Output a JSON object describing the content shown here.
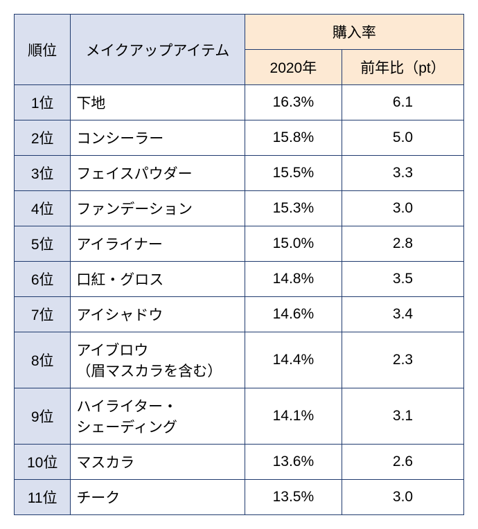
{
  "table": {
    "columns": {
      "rank": "順位",
      "item": "メイクアップアイテム",
      "rate_group": "購入率",
      "year": "2020年",
      "yoy": "前年比（pt）"
    },
    "rows": [
      {
        "rank": "1位",
        "item": "下地",
        "rate": "16.3%",
        "yoy": "6.1"
      },
      {
        "rank": "2位",
        "item": "コンシーラー",
        "rate": "15.8%",
        "yoy": "5.0"
      },
      {
        "rank": "3位",
        "item": "フェイスパウダー",
        "rate": "15.5%",
        "yoy": "3.3"
      },
      {
        "rank": "4位",
        "item": "ファンデーション",
        "rate": "15.3%",
        "yoy": "3.0"
      },
      {
        "rank": "5位",
        "item": "アイライナー",
        "rate": "15.0%",
        "yoy": "2.8"
      },
      {
        "rank": "6位",
        "item": "口紅・グロス",
        "rate": "14.8%",
        "yoy": "3.5"
      },
      {
        "rank": "7位",
        "item": "アイシャドウ",
        "rate": "14.6%",
        "yoy": "3.4"
      },
      {
        "rank": "8位",
        "item": "アイブロウ\n（眉マスカラを含む）",
        "rate": "14.4%",
        "yoy": "2.3"
      },
      {
        "rank": "9位",
        "item": "ハイライター・\nシェーディング",
        "rate": "14.1%",
        "yoy": "3.1"
      },
      {
        "rank": "10位",
        "item": "マスカラ",
        "rate": "13.6%",
        "yoy": "2.6"
      },
      {
        "rank": "11位",
        "item": "チーク",
        "rate": "13.5%",
        "yoy": "3.0"
      }
    ],
    "styling": {
      "border_color": "#1f3a6e",
      "rank_bg": "#dae0ef",
      "rate_header_bg": "#fde9d3",
      "text_color": "#000000",
      "font_size": 21,
      "background": "#ffffff"
    }
  }
}
